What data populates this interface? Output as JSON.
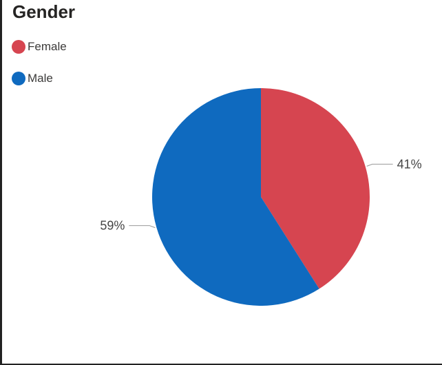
{
  "chart_data": {
    "type": "pie",
    "title": "Gender",
    "slices": [
      {
        "label": "Female",
        "value": 41,
        "display": "41%",
        "color": "#d64550"
      },
      {
        "label": "Male",
        "value": 59,
        "display": "59%",
        "color": "#0f6abf"
      }
    ],
    "legend_position": "top-left"
  }
}
